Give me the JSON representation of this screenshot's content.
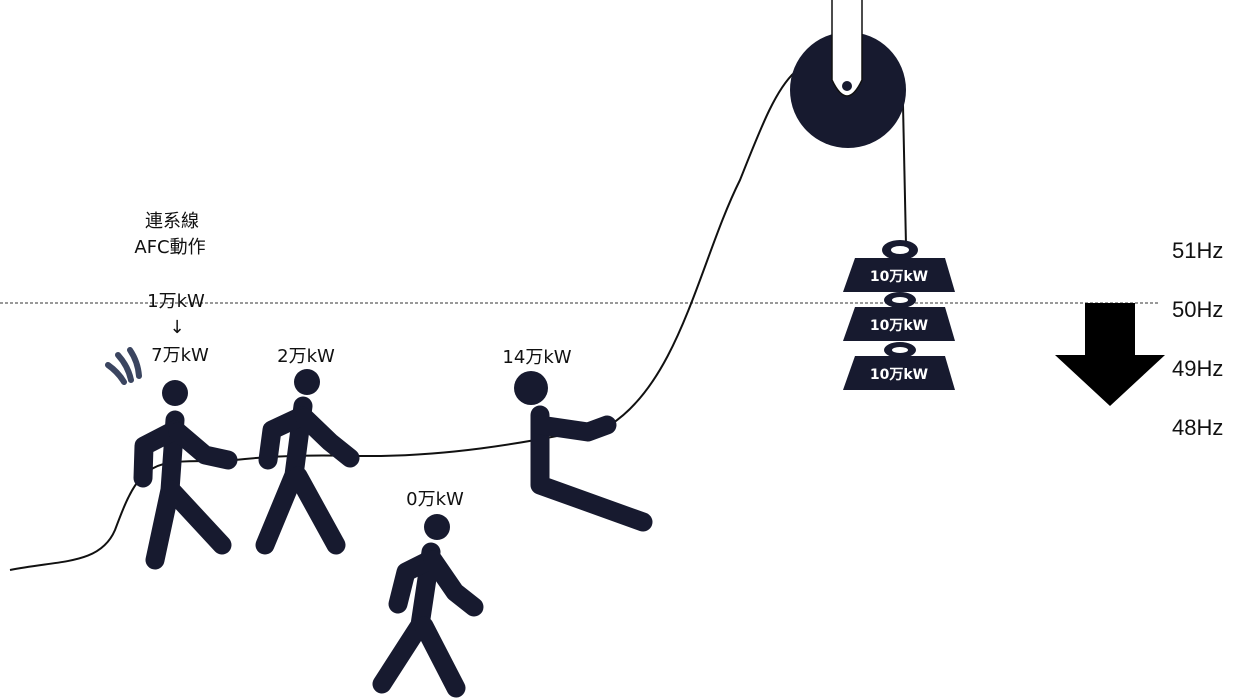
{
  "afc_label": [
    "連系線",
    "AFC動作"
  ],
  "people": [
    {
      "before": "1万kW",
      "arrow": "↓",
      "after": "7万kW"
    },
    {
      "label": "2万kW"
    },
    {
      "label": "14万kW"
    },
    {
      "label": "0万kW"
    }
  ],
  "weights": [
    "10万kW",
    "10万kW",
    "10万kW"
  ],
  "frequency_scale": [
    "51Hz",
    "50Hz",
    "49Hz",
    "48Hz"
  ]
}
